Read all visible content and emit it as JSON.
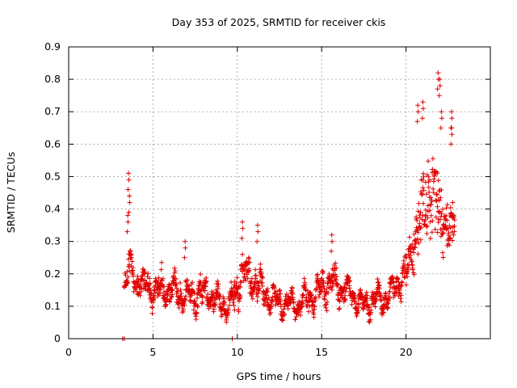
{
  "chart_data": {
    "type": "scatter",
    "title": "Day 353 of 2025, SRMTID for receiver ckis",
    "xlabel": "GPS time / hours",
    "ylabel": "SRMTID / TECUs",
    "xlim": [
      0,
      25
    ],
    "ylim": [
      0,
      0.9
    ],
    "xticks": [
      0,
      5,
      10,
      15,
      20
    ],
    "xtick_labels": [
      "0",
      "5",
      "10",
      "15",
      "20"
    ],
    "yticks": [
      0,
      0.1,
      0.2,
      0.3,
      0.4,
      0.5,
      0.6,
      0.7,
      0.8,
      0.9
    ],
    "ytick_labels": [
      "0",
      "0.1",
      "0.2",
      "0.3",
      "0.4",
      "0.5",
      "0.6",
      "0.7",
      "0.8",
      "0.9"
    ],
    "grid": true,
    "marker": "+",
    "marker_color": "#e00000",
    "series": [
      {
        "name": "SRMTID",
        "description": "Dense cloud of points: ~0.15-0.2 TECU early (3.3-6h), peak ~0.51 near 3.6h, ~0.1-0.15 mid-day with scattered peaks to ~0.36, rising sharply after 19.5h to 0.3-0.8 with max ~0.82 near 22h",
        "envelope": {
          "x": [
            3.3,
            3.5,
            3.6,
            3.8,
            4.5,
            5.0,
            6.0,
            7.0,
            8.0,
            9.0,
            9.5,
            10.0,
            10.2,
            11.0,
            11.8,
            12.5,
            13.5,
            14.5,
            15.5,
            16.0,
            17.0,
            17.5,
            18.0,
            19.0,
            19.5,
            20.0,
            20.5,
            21.0,
            21.5,
            22.0,
            22.5,
            22.9
          ],
          "median": [
            0.17,
            0.19,
            0.22,
            0.18,
            0.17,
            0.15,
            0.15,
            0.13,
            0.14,
            0.11,
            0.1,
            0.15,
            0.2,
            0.18,
            0.13,
            0.11,
            0.1,
            0.13,
            0.18,
            0.16,
            0.13,
            0.1,
            0.12,
            0.13,
            0.17,
            0.2,
            0.3,
            0.4,
            0.45,
            0.42,
            0.33,
            0.34
          ],
          "spread": [
            0.04,
            0.06,
            0.08,
            0.06,
            0.06,
            0.06,
            0.06,
            0.05,
            0.06,
            0.04,
            0.04,
            0.07,
            0.08,
            0.07,
            0.05,
            0.04,
            0.04,
            0.05,
            0.07,
            0.05,
            0.04,
            0.03,
            0.04,
            0.04,
            0.05,
            0.07,
            0.12,
            0.16,
            0.18,
            0.18,
            0.12,
            0.1
          ]
        },
        "peaks": [
          {
            "x": 3.55,
            "y": 0.51
          },
          {
            "x": 3.6,
            "y": 0.44
          },
          {
            "x": 3.5,
            "y": 0.38
          },
          {
            "x": 6.9,
            "y": 0.3
          },
          {
            "x": 10.3,
            "y": 0.36
          },
          {
            "x": 11.2,
            "y": 0.35
          },
          {
            "x": 15.6,
            "y": 0.32
          },
          {
            "x": 21.9,
            "y": 0.82
          },
          {
            "x": 22.0,
            "y": 0.8
          },
          {
            "x": 21.0,
            "y": 0.73
          },
          {
            "x": 20.7,
            "y": 0.72
          },
          {
            "x": 22.1,
            "y": 0.7
          },
          {
            "x": 22.7,
            "y": 0.7
          },
          {
            "x": 22.7,
            "y": 0.65
          }
        ],
        "baseline_points": [
          {
            "x": 3.2,
            "y": 0.0
          },
          {
            "x": 3.3,
            "y": 0.0
          },
          {
            "x": 9.7,
            "y": 0.0
          }
        ]
      }
    ]
  }
}
